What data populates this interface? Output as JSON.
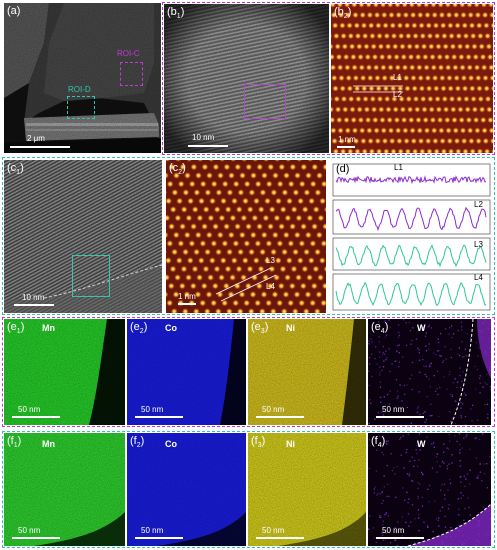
{
  "panels": {
    "a": {
      "label": "(a)",
      "roi_c": "ROI-C",
      "roi_d": "ROI-D",
      "scale": "2 μm"
    },
    "b1": {
      "label": "(b",
      "sub": "1",
      "scale": "10 nm"
    },
    "b2": {
      "label": "(b",
      "sub": "2",
      "scale": "1 nm",
      "l1": "L1",
      "l2": "L2"
    },
    "c1": {
      "label": "(c",
      "sub": "1",
      "scale": "10 nm"
    },
    "c2": {
      "label": "(c",
      "sub": "2",
      "scale": "1 nm",
      "l3": "L3",
      "l4": "L4"
    },
    "d": {
      "label": "(d)",
      "profiles": [
        "L1",
        "L2",
        "L3",
        "L4"
      ]
    },
    "e": [
      {
        "label": "(e",
        "sub": "1",
        "element": "Mn",
        "scale": "50 nm",
        "color": "#27d42a"
      },
      {
        "label": "(e",
        "sub": "2",
        "element": "Co",
        "scale": "50 nm",
        "color": "#1a1ee6"
      },
      {
        "label": "(e",
        "sub": "3",
        "element": "Ni",
        "scale": "50 nm",
        "color": "#d8c41e"
      },
      {
        "label": "(e",
        "sub": "4",
        "element": "W",
        "scale": "50 nm",
        "color": "#8a2bd0"
      }
    ],
    "f": [
      {
        "label": "(f",
        "sub": "1",
        "element": "Mn",
        "scale": "50 nm",
        "color": "#2fd62f"
      },
      {
        "label": "(f",
        "sub": "2",
        "element": "Co",
        "scale": "50 nm",
        "color": "#1a1ee6"
      },
      {
        "label": "(f",
        "sub": "3",
        "element": "Ni",
        "scale": "50 nm",
        "color": "#d9d31c"
      },
      {
        "label": "(f",
        "sub": "4",
        "element": "W",
        "scale": "50 nm",
        "color": "#8a2bd0"
      }
    ]
  }
}
